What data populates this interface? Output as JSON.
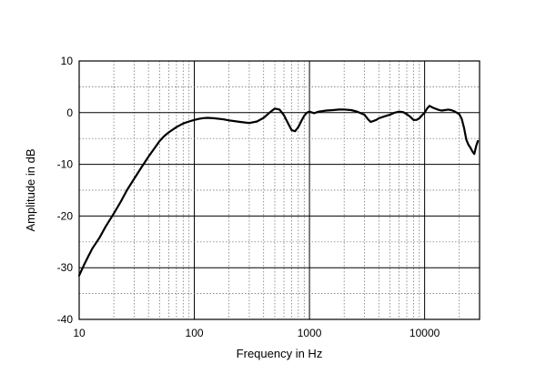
{
  "chart_data": {
    "type": "line",
    "xlabel": "Frequency in Hz",
    "ylabel": "Amplitude in dB",
    "xscale": "log",
    "xlim": [
      10,
      30000
    ],
    "ylim": [
      -40,
      10
    ],
    "x_ticks": [
      10,
      100,
      1000,
      10000
    ],
    "x_tick_labels": [
      "10",
      "100",
      "1000",
      "10000"
    ],
    "y_ticks": [
      10,
      0,
      -10,
      -20,
      -30,
      -40
    ],
    "y_tick_labels": [
      "10",
      "0",
      "-10",
      "-20",
      "-30",
      "-40"
    ],
    "grid": true,
    "grid_style": "dotted minor, solid major",
    "line_color": "#000000",
    "series": [
      {
        "x": [
          10,
          11,
          12,
          13,
          15,
          17,
          20,
          23,
          26,
          30,
          35,
          40,
          45,
          50,
          55,
          60,
          70,
          80,
          90,
          100,
          110,
          120,
          130,
          150,
          180,
          200,
          250,
          300,
          350,
          400,
          450,
          500,
          550,
          600,
          650,
          700,
          750,
          800,
          850,
          900,
          950,
          1000,
          1100,
          1200,
          1400,
          1600,
          1800,
          2000,
          2300,
          2600,
          3000,
          3200,
          3400,
          3600,
          3800,
          4000,
          4500,
          5000,
          5500,
          6000,
          6500,
          7000,
          7500,
          8000,
          8500,
          9000,
          9500,
          10000,
          10500,
          11000,
          12000,
          13000,
          14000,
          15000,
          16000,
          17000,
          18000,
          19000,
          20000,
          21000,
          22000,
          23000,
          24000,
          25000,
          26000,
          27000,
          28000,
          29000
        ],
        "y": [
          -31.5,
          -29.5,
          -27.8,
          -26.3,
          -24.2,
          -22,
          -19.5,
          -17.2,
          -15,
          -12.8,
          -10.5,
          -8.5,
          -6.9,
          -5.5,
          -4.5,
          -3.8,
          -2.8,
          -2.1,
          -1.7,
          -1.4,
          -1.2,
          -1.05,
          -1,
          -1.1,
          -1.3,
          -1.5,
          -1.8,
          -2,
          -1.7,
          -1,
          0,
          0.8,
          0.6,
          -0.5,
          -2,
          -3.4,
          -3.6,
          -2.8,
          -1.6,
          -0.6,
          0,
          0.2,
          -0.1,
          0.2,
          0.4,
          0.5,
          0.6,
          0.6,
          0.5,
          0.2,
          -0.4,
          -1.2,
          -1.8,
          -1.6,
          -1.4,
          -1.1,
          -0.7,
          -0.4,
          0,
          0.2,
          0.1,
          -0.3,
          -0.8,
          -1.4,
          -1.4,
          -1.1,
          -0.5,
          0,
          0.8,
          1.3,
          0.9,
          0.6,
          0.4,
          0.5,
          0.6,
          0.5,
          0.3,
          0,
          -0.3,
          -1.2,
          -3,
          -5.2,
          -6.2,
          -6.8,
          -7.5,
          -8,
          -6.5,
          -5.5
        ]
      }
    ]
  }
}
